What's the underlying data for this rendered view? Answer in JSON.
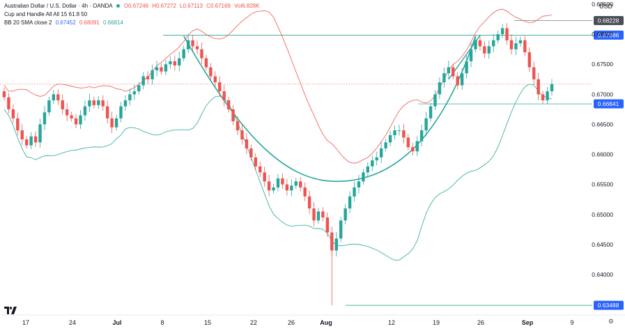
{
  "header": {
    "title": "Australian Dollar / U.S. Dollar · 4h · OANDA",
    "ohlc": {
      "o": "O0.67246",
      "h": "H0.67272",
      "l": "L0.67113",
      "c": "C0.67169",
      "vol": "Vol6.828K"
    },
    "indicator1": "Cup and Handle All All 15 61.8 50",
    "indicator2_name": "BB 20 SMA close 2",
    "indicator2_values": {
      "basis": "0.67452",
      "upper": "0.68091",
      "lower": "0.66814"
    }
  },
  "currency": "USD",
  "colors": {
    "up": "#26a69a",
    "down": "#ef5350",
    "bb_upper": "#ef5350",
    "bb_lower": "#26a69a",
    "cup": "#26a69a",
    "level": "#089981",
    "label_bg": "#2962ff"
  },
  "chart_data": {
    "type": "candlestick",
    "title": "Australian Dollar / U.S. Dollar · 4h · OANDA",
    "ylim": [
      0.6335,
      0.6857
    ],
    "y_ticks": [
      "0.68500",
      "0.68000",
      "0.67500",
      "0.67000",
      "0.66500",
      "0.66000",
      "0.65500",
      "0.65000",
      "0.64500",
      "0.64000"
    ],
    "x_ticks": [
      "17",
      "24",
      "Jul",
      "8",
      "15",
      "22",
      "26",
      "Aug",
      "12",
      "19",
      "26",
      "Sep",
      "9"
    ],
    "levels": [
      {
        "value": 0.68228,
        "label": "0.68228",
        "style": "grey"
      },
      {
        "value": 0.67986,
        "label": "0.67986",
        "style": "blue"
      },
      {
        "value": 0.66841,
        "label": "0.66841",
        "style": "blue"
      },
      {
        "value": 0.63488,
        "label": "0.63488",
        "style": "blue"
      }
    ],
    "current_price": 0.67169,
    "closes": [
      0.6695,
      0.6675,
      0.666,
      0.664,
      0.6625,
      0.6615,
      0.663,
      0.662,
      0.665,
      0.667,
      0.669,
      0.67,
      0.669,
      0.6675,
      0.6665,
      0.666,
      0.665,
      0.6665,
      0.668,
      0.669,
      0.6682,
      0.669,
      0.668,
      0.666,
      0.6645,
      0.666,
      0.668,
      0.669,
      0.67,
      0.6705,
      0.6715,
      0.673,
      0.6725,
      0.674,
      0.6745,
      0.6738,
      0.675,
      0.6755,
      0.6748,
      0.676,
      0.6775,
      0.679,
      0.678,
      0.6775,
      0.676,
      0.6745,
      0.673,
      0.672,
      0.6705,
      0.669,
      0.6675,
      0.6655,
      0.664,
      0.6625,
      0.661,
      0.6595,
      0.658,
      0.657,
      0.6555,
      0.654,
      0.6545,
      0.656,
      0.655,
      0.654,
      0.6548,
      0.6555,
      0.6545,
      0.653,
      0.651,
      0.649,
      0.6505,
      0.6495,
      0.647,
      0.644,
      0.646,
      0.649,
      0.651,
      0.653,
      0.6545,
      0.6555,
      0.657,
      0.658,
      0.659,
      0.6595,
      0.661,
      0.662,
      0.6632,
      0.664,
      0.664,
      0.6628,
      0.6612,
      0.6605,
      0.6622,
      0.664,
      0.666,
      0.668,
      0.67,
      0.672,
      0.6735,
      0.6745,
      0.673,
      0.6715,
      0.6735,
      0.6755,
      0.6775,
      0.679,
      0.678,
      0.6768,
      0.678,
      0.679,
      0.68,
      0.681,
      0.679,
      0.6775,
      0.6785,
      0.679,
      0.677,
      0.6745,
      0.6725,
      0.67,
      0.669,
      0.6705,
      0.6717
    ]
  },
  "logo": "tradingview-logo"
}
